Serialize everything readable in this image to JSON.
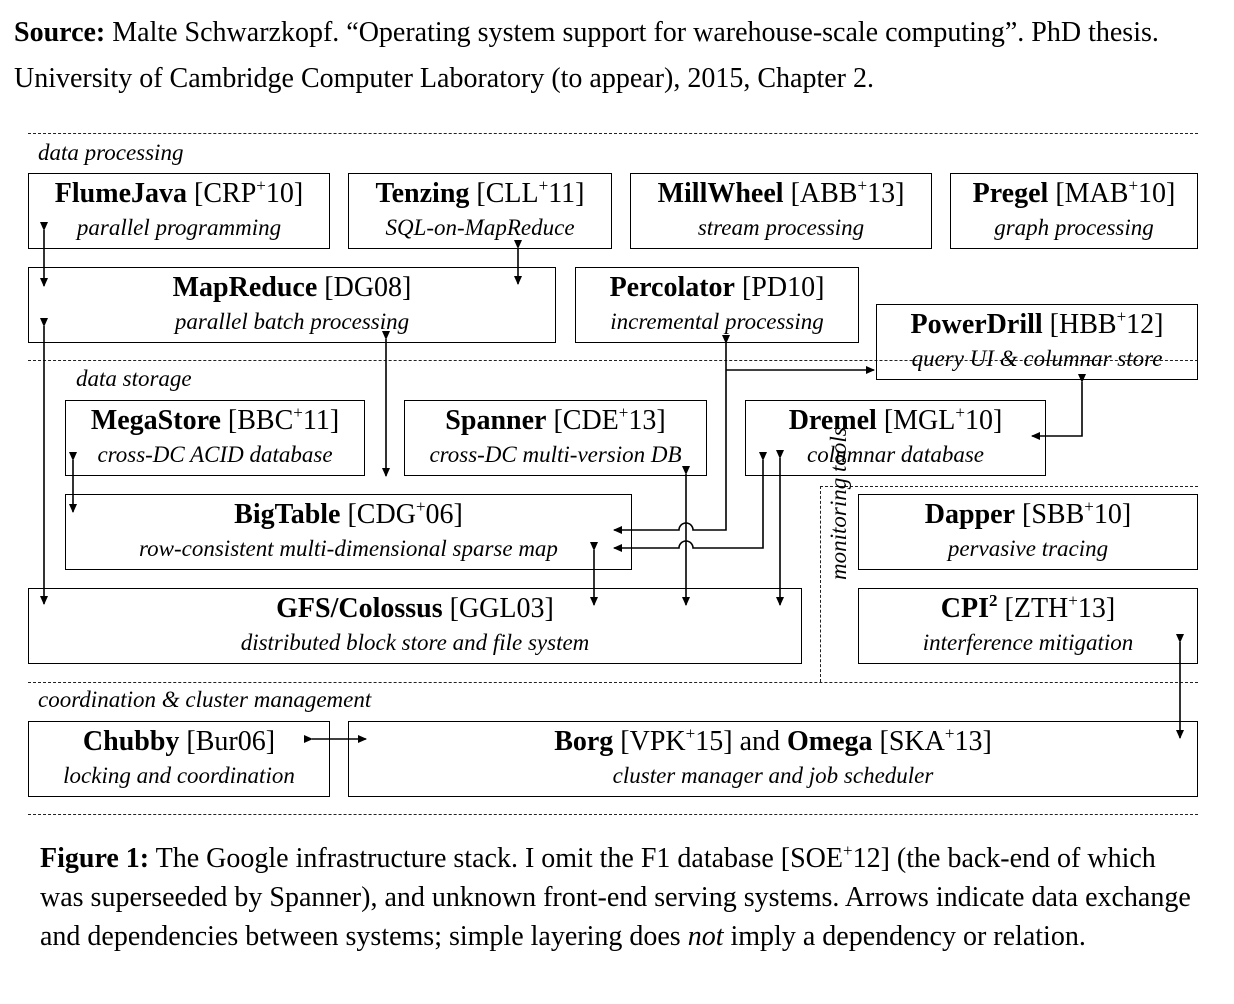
{
  "source": {
    "label": "Source:",
    "text": "Malte Schwarzkopf. “Operating system support for warehouse-scale computing”. PhD thesis. University of Cambridge Computer Laboratory (to appear), 2015, Chapter 2."
  },
  "layers": {
    "data_processing": "data processing",
    "data_storage": "data storage",
    "coordination": "coordination & cluster management",
    "monitoring": "monitoring tools"
  },
  "systems": {
    "flumejava": {
      "name": "FlumeJava",
      "cite": "[CRP",
      "sup": "+",
      "cite_end": "10]",
      "desc": "parallel programming"
    },
    "tenzing": {
      "name": "Tenzing",
      "cite": "[CLL",
      "sup": "+",
      "cite_end": "11]",
      "desc": "SQL-on-MapReduce"
    },
    "millwheel": {
      "name": "MillWheel",
      "cite": "[ABB",
      "sup": "+",
      "cite_end": "13]",
      "desc": "stream processing"
    },
    "pregel": {
      "name": "Pregel",
      "cite": "[MAB",
      "sup": "+",
      "cite_end": "10]",
      "desc": "graph processing"
    },
    "mapreduce": {
      "name": "MapReduce",
      "cite": "[DG08]",
      "desc": "parallel batch processing"
    },
    "percolator": {
      "name": "Percolator",
      "cite": "[PD10]",
      "desc": "incremental processing"
    },
    "powerdrill": {
      "name": "PowerDrill",
      "cite": "[HBB",
      "sup": "+",
      "cite_end": "12]",
      "desc": "query UI & columnar store"
    },
    "megastore": {
      "name": "MegaStore",
      "cite": "[BBC",
      "sup": "+",
      "cite_end": "11]",
      "desc": "cross-DC ACID database"
    },
    "spanner": {
      "name": "Spanner",
      "cite": "[CDE",
      "sup": "+",
      "cite_end": "13]",
      "desc": "cross-DC multi-version DB"
    },
    "dremel": {
      "name": "Dremel",
      "cite": "[MGL",
      "sup": "+",
      "cite_end": "10]",
      "desc": "columnar database"
    },
    "bigtable": {
      "name": "BigTable",
      "cite": "[CDG",
      "sup": "+",
      "cite_end": "06]",
      "desc": "row-consistent multi-dimensional sparse map"
    },
    "gfs": {
      "name": "GFS/Colossus",
      "cite": "[GGL03]",
      "desc": "distributed block store and file system"
    },
    "dapper": {
      "name": "Dapper",
      "cite": "[SBB",
      "sup": "+",
      "cite_end": "10]",
      "desc": "pervasive tracing"
    },
    "cpi2": {
      "name": "CPI",
      "name_sup": "2",
      "cite": "[ZTH",
      "sup": "+",
      "cite_end": "13]",
      "desc": "interference mitigation"
    },
    "chubby": {
      "name": "Chubby",
      "cite": "[Bur06]",
      "desc": "locking and coordination"
    },
    "borg": {
      "name": "Borg",
      "cite": "[VPK",
      "sup": "+",
      "cite_end": "15]",
      "and": "and",
      "name2": "Omega",
      "cite2": "[SKA",
      "sup2": "+",
      "cite2_end": "13]",
      "desc": "cluster manager and job scheduler"
    }
  },
  "caption": {
    "label": "Figure 1:",
    "text_1": "The Google infrastructure stack. I omit the F1 database [SOE",
    "sup": "+",
    "text_2": "12] (the back-end of which was superseeded by Spanner), and unknown front-end serving systems. Arrows indicate data exchange and dependencies between systems; simple layering does",
    "emph": "not",
    "text_3": "imply a dependency or relation."
  }
}
